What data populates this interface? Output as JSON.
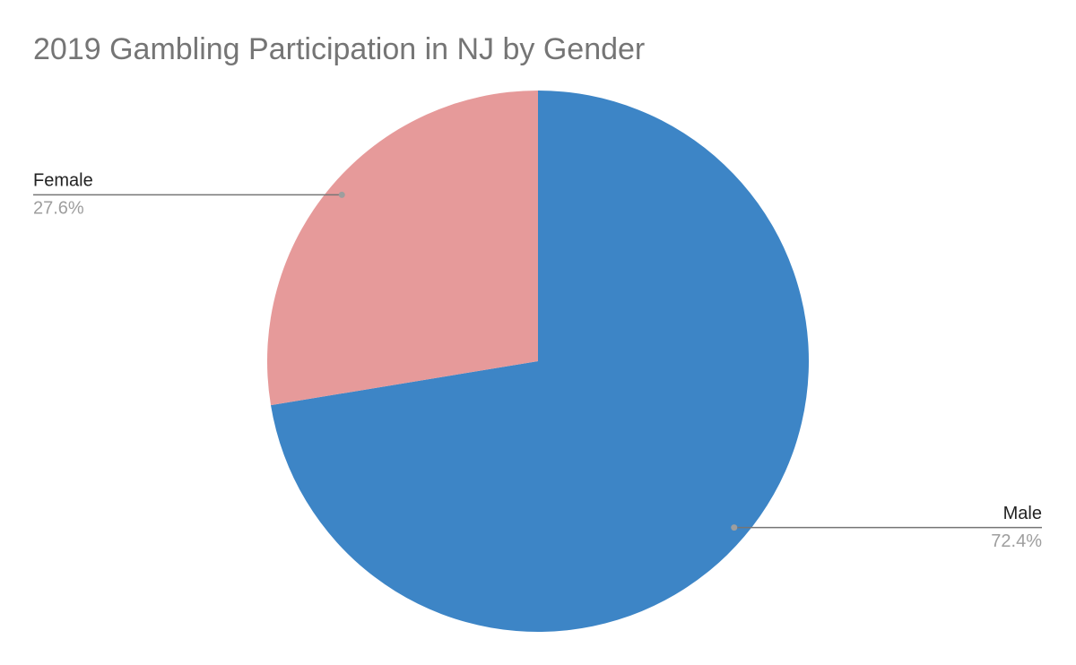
{
  "chart_data": {
    "type": "pie",
    "title": "2019 Gambling Participation in NJ by Gender",
    "categories": [
      "Male",
      "Female"
    ],
    "values": [
      72.4,
      27.6
    ],
    "value_labels": [
      "72.4%",
      "27.6%"
    ],
    "colors": [
      "#3d85c6",
      "#e69a9a"
    ]
  }
}
